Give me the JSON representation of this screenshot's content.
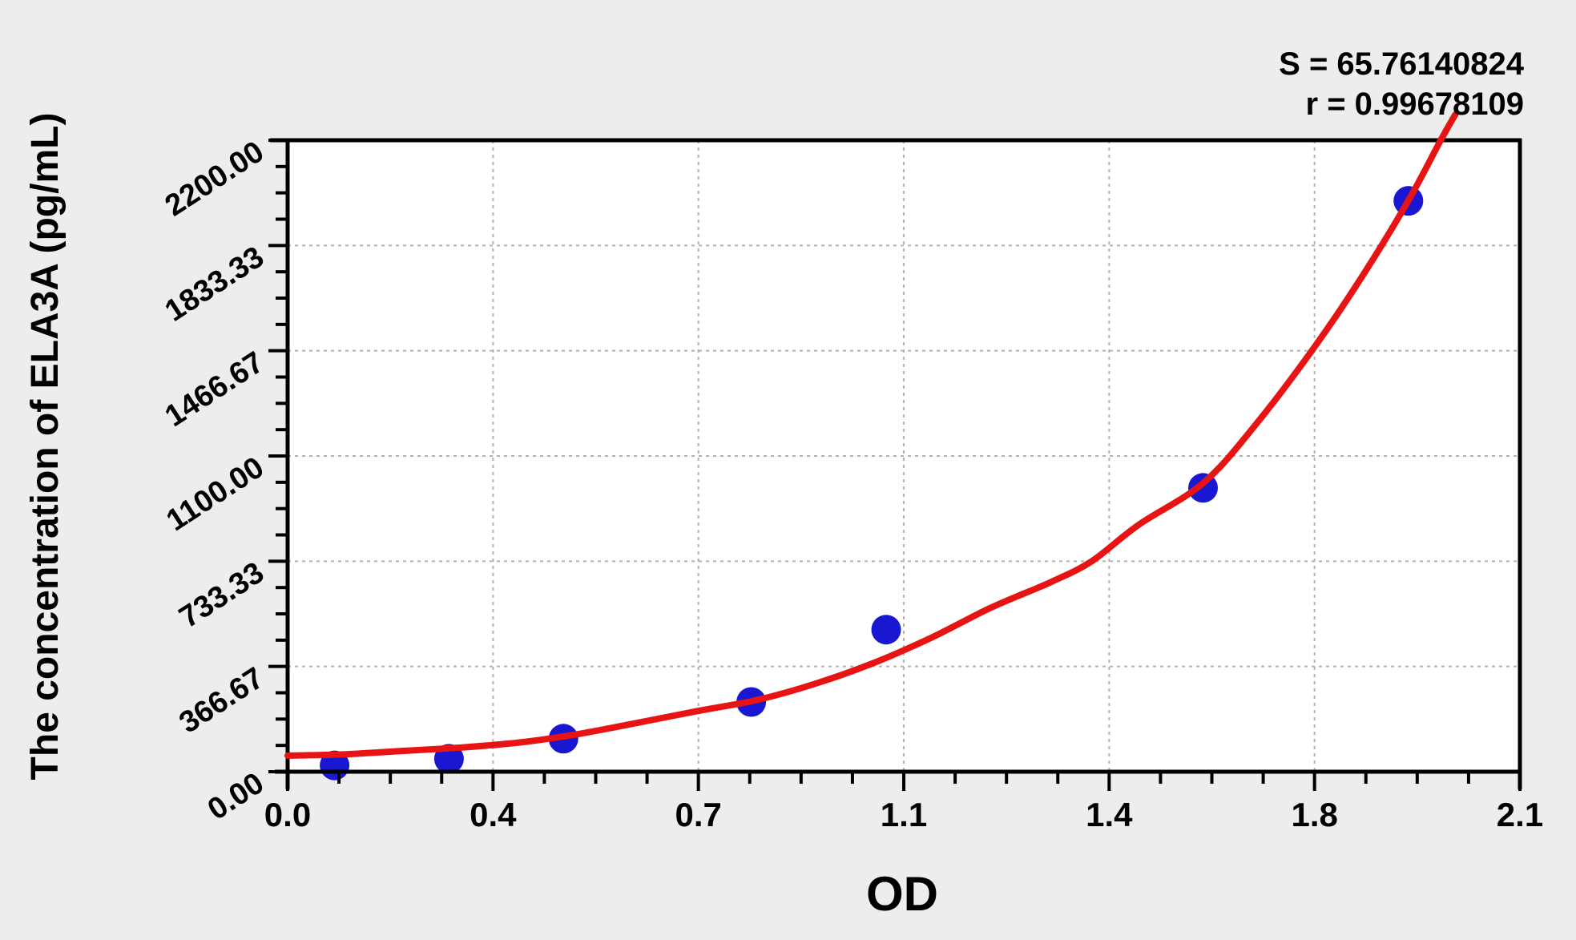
{
  "stats": {
    "s": "S = 65.76140824",
    "r": "r = 0.99678109"
  },
  "colors": {
    "background": "#ededed",
    "plot_background": "#ffffff",
    "axis": "#000000",
    "grid": "#b2b2b2",
    "curve": "#e81414",
    "points": "#1a17d2"
  },
  "chart_data": {
    "type": "scatter",
    "title": "",
    "xlabel": "OD",
    "ylabel": "The concentration of ELA3A (pg/mL)",
    "xlim": [
      0.0,
      2.1
    ],
    "ylim": [
      0.0,
      2200.0
    ],
    "x_major_divisions": 6,
    "y_major_divisions": 6,
    "minor_per_major": 4,
    "x_tick_labels": [
      "0.0",
      "0.4",
      "0.7",
      "1.1",
      "1.4",
      "1.8",
      "2.1"
    ],
    "y_tick_labels": [
      "0.00",
      "366.67",
      "733.33",
      "1100.00",
      "1466.67",
      "1833.33",
      "2200.00"
    ],
    "grid": {
      "show": true,
      "style": "dashed"
    },
    "legend": {
      "show": false
    },
    "annotations": [
      "S = 65.76140824",
      "r = 0.99678109"
    ],
    "series": [
      {
        "name": "standard-points",
        "type": "scatter",
        "points": [
          {
            "od": 0.08,
            "concentration": 22
          },
          {
            "od": 0.275,
            "concentration": 45
          },
          {
            "od": 0.47,
            "concentration": 115
          },
          {
            "od": 0.79,
            "concentration": 243
          },
          {
            "od": 1.02,
            "concentration": 495
          },
          {
            "od": 1.56,
            "concentration": 989
          },
          {
            "od": 1.91,
            "concentration": 1989
          }
        ]
      },
      {
        "name": "fitted-curve",
        "type": "line",
        "points": [
          [
            0.0,
            56
          ],
          [
            0.1,
            61
          ],
          [
            0.2,
            73
          ],
          [
            0.3,
            85
          ],
          [
            0.4,
            103
          ],
          [
            0.5,
            133
          ],
          [
            0.6,
            172
          ],
          [
            0.7,
            212
          ],
          [
            0.8,
            250
          ],
          [
            0.9,
            307
          ],
          [
            1.0,
            380
          ],
          [
            1.1,
            470
          ],
          [
            1.2,
            573
          ],
          [
            1.3,
            660
          ],
          [
            1.37,
            733
          ],
          [
            1.45,
            860
          ],
          [
            1.56,
            1005
          ],
          [
            1.65,
            1210
          ],
          [
            1.75,
            1480
          ],
          [
            1.83,
            1722
          ],
          [
            1.91,
            1990
          ],
          [
            1.965,
            2200
          ],
          [
            1.99,
            2290
          ]
        ]
      }
    ]
  }
}
